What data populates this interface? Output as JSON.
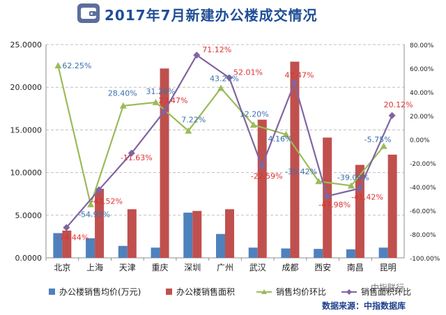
{
  "title": "2017年7月新建办公楼成交情况",
  "source": "数据来源：中指数据库",
  "watermark": "中指联行",
  "colors": {
    "bar_price": "#4f81bd",
    "bar_area": "#c0504d",
    "line_price_mom": "#9bbb59",
    "line_area_mom": "#8064a2",
    "label_positive": "#e03030",
    "label_negative": "#e03030",
    "label_blue": "#3a6fb0",
    "title": "#1f4e96"
  },
  "chart_data": {
    "type": "bar",
    "categories": [
      "北京",
      "上海",
      "天津",
      "重庆",
      "深圳",
      "广州",
      "武汉",
      "成都",
      "西安",
      "南昌",
      "昆明"
    ],
    "y_left": {
      "min": 0,
      "max": 25,
      "ticks": [
        "0.0000",
        "5.0000",
        "10.0000",
        "15.0000",
        "20.0000",
        "25.0000"
      ]
    },
    "y_right": {
      "min": -100,
      "max": 80,
      "ticks": [
        "-100.00%",
        "-80.00%",
        "-60.00%",
        "-40.00%",
        "-20.00%",
        "0.00%",
        "20.00%",
        "40.00%",
        "60.00%",
        "80.00%"
      ]
    },
    "grid": true,
    "legend_position": "bottom",
    "series": [
      {
        "name": "办公楼销售均价(万元)",
        "type": "bar",
        "axis": "left",
        "values": [
          2.9,
          2.3,
          1.4,
          1.2,
          5.3,
          2.8,
          1.2,
          1.1,
          1.05,
          1.0,
          1.2
        ]
      },
      {
        "name": "办公楼销售面积",
        "type": "bar",
        "axis": "left",
        "values": [
          3.2,
          8.1,
          5.7,
          22.2,
          5.5,
          5.7,
          16.2,
          23.0,
          14.1,
          10.9,
          12.1
        ]
      },
      {
        "name": "销售均价环比",
        "type": "line",
        "axis": "right",
        "values": [
          62.25,
          -54.93,
          28.4,
          31.26,
          7.22,
          43.27,
          12.2,
          4.16,
          -35.42,
          -39.09,
          -5.75
        ],
        "labels": [
          "62.25%",
          "-54.93%",
          "28.40%",
          "31.26%",
          "7.22%",
          "43.27%",
          "12.20%",
          "4.16%",
          "-35.42%",
          "-39.09%",
          "-5.75%"
        ]
      },
      {
        "name": "销售面积环比",
        "type": "line",
        "axis": "right",
        "values": [
          -74.44,
          -42.52,
          -11.63,
          23.47,
          71.12,
          52.01,
          -22.59,
          47.47,
          -47.98,
          -41.42,
          20.12
        ],
        "labels": [
          "-74.44%",
          "-42.52%",
          "-11.63%",
          "23.47%",
          "71.12%",
          "52.01%",
          "-22.59%",
          "47.47%",
          "-47.98%",
          "-41.42%",
          "20.12%"
        ]
      }
    ],
    "legend_items": [
      "办公楼销售均价(万元)",
      "办公楼销售面积",
      "销售均价环比",
      "销售面积环比"
    ]
  }
}
